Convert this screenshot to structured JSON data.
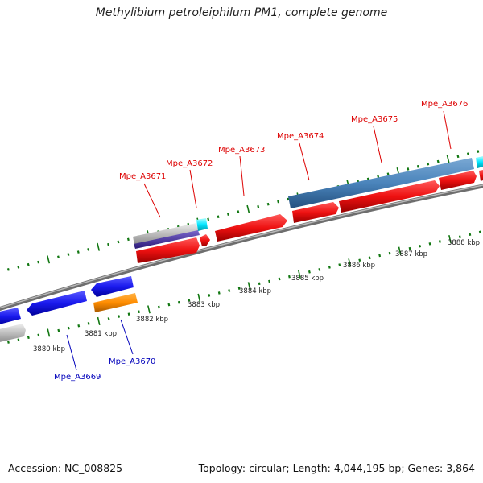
{
  "title": "Methylibium petroleiphilum PM1, complete genome",
  "footer": {
    "accession": "Accession: NC_008825",
    "summary": "Topology: circular; Length: 4,044,195 bp; Genes: 3,864"
  },
  "colors": {
    "forward_label": "#dd0000",
    "reverse_label": "#0000bb",
    "tick": "#117711",
    "backbone": "#888888"
  },
  "kbp_labels": [
    "3880 kbp",
    "3881 kbp",
    "3882 kbp",
    "3883 kbp",
    "3884 kbp",
    "3885 kbp",
    "3886 kbp",
    "3887 kbp",
    "3888 kbp"
  ],
  "forward_gene_labels": [
    "Mpe_A3671",
    "Mpe_A3672",
    "Mpe_A3673",
    "Mpe_A3674",
    "Mpe_A3675",
    "Mpe_A3676"
  ],
  "reverse_gene_labels": [
    "Mpe_A3669",
    "Mpe_A3670"
  ]
}
